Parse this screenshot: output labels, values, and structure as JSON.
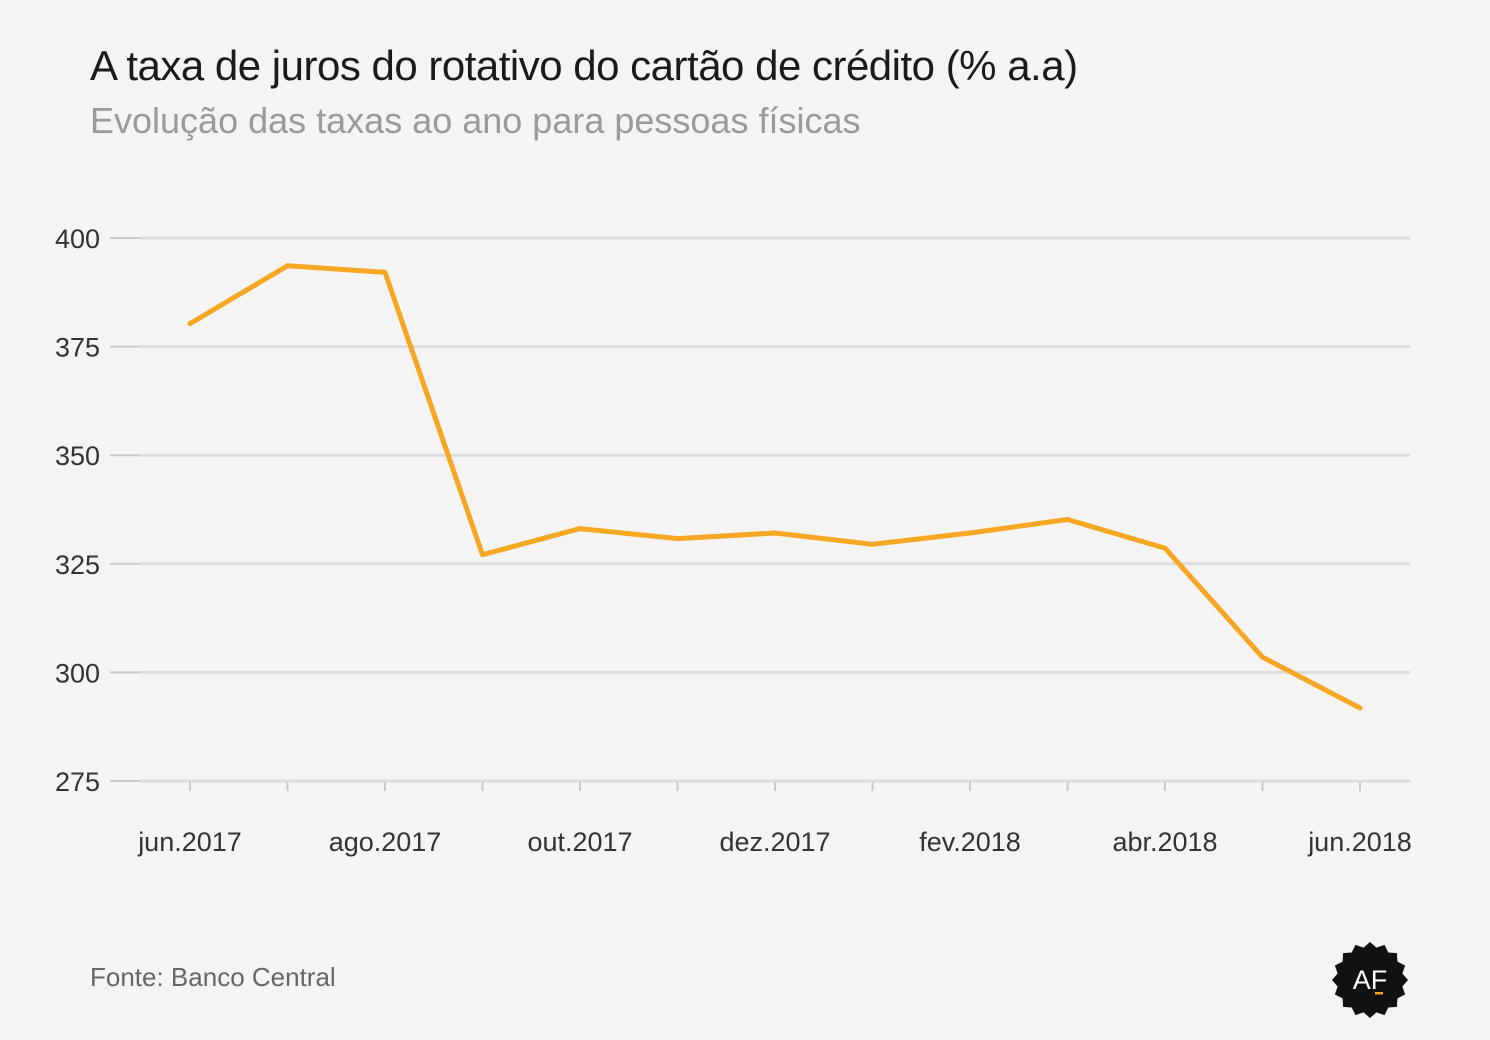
{
  "header": {
    "title": "A taxa de juros do rotativo do cartão de crédito (% a.a)",
    "subtitle": "Evolução das taxas ao ano para pessoas físicas"
  },
  "footer": {
    "source": "Fonte: Banco Central",
    "logo_text": "AF"
  },
  "colors": {
    "line": "#f5a623",
    "grid": "#dcdcdc",
    "axis": "#c8c8c8",
    "logo_bg": "#111111",
    "logo_accent": "#f5a623"
  },
  "chart_data": {
    "type": "line",
    "title": "A taxa de juros do rotativo do cartão de crédito (% a.a)",
    "subtitle": "Evolução das taxas ao ano para pessoas físicas",
    "xlabel": "",
    "ylabel": "",
    "x": [
      "jun.2017",
      "jul.2017",
      "ago.2017",
      "set.2017",
      "out.2017",
      "nov.2017",
      "dez.2017",
      "jan.2018",
      "fev.2018",
      "mar.2018",
      "abr.2018",
      "mai.2018",
      "jun.2018"
    ],
    "x_tick_labels": [
      "jun.2017",
      "",
      "ago.2017",
      "",
      "out.2017",
      "",
      "dez.2017",
      "",
      "fev.2018",
      "",
      "abr.2018",
      "",
      "jun.2018"
    ],
    "series": [
      {
        "values": [
          380.3,
          393.6,
          392.1,
          327.1,
          333.1,
          330.8,
          332.1,
          329.5,
          332.1,
          335.2,
          328.6,
          303.5,
          291.8
        ]
      }
    ],
    "ylim": [
      275,
      400
    ],
    "yticks": [
      275,
      300,
      325,
      350,
      375,
      400
    ],
    "grid": true,
    "legend": "none"
  }
}
